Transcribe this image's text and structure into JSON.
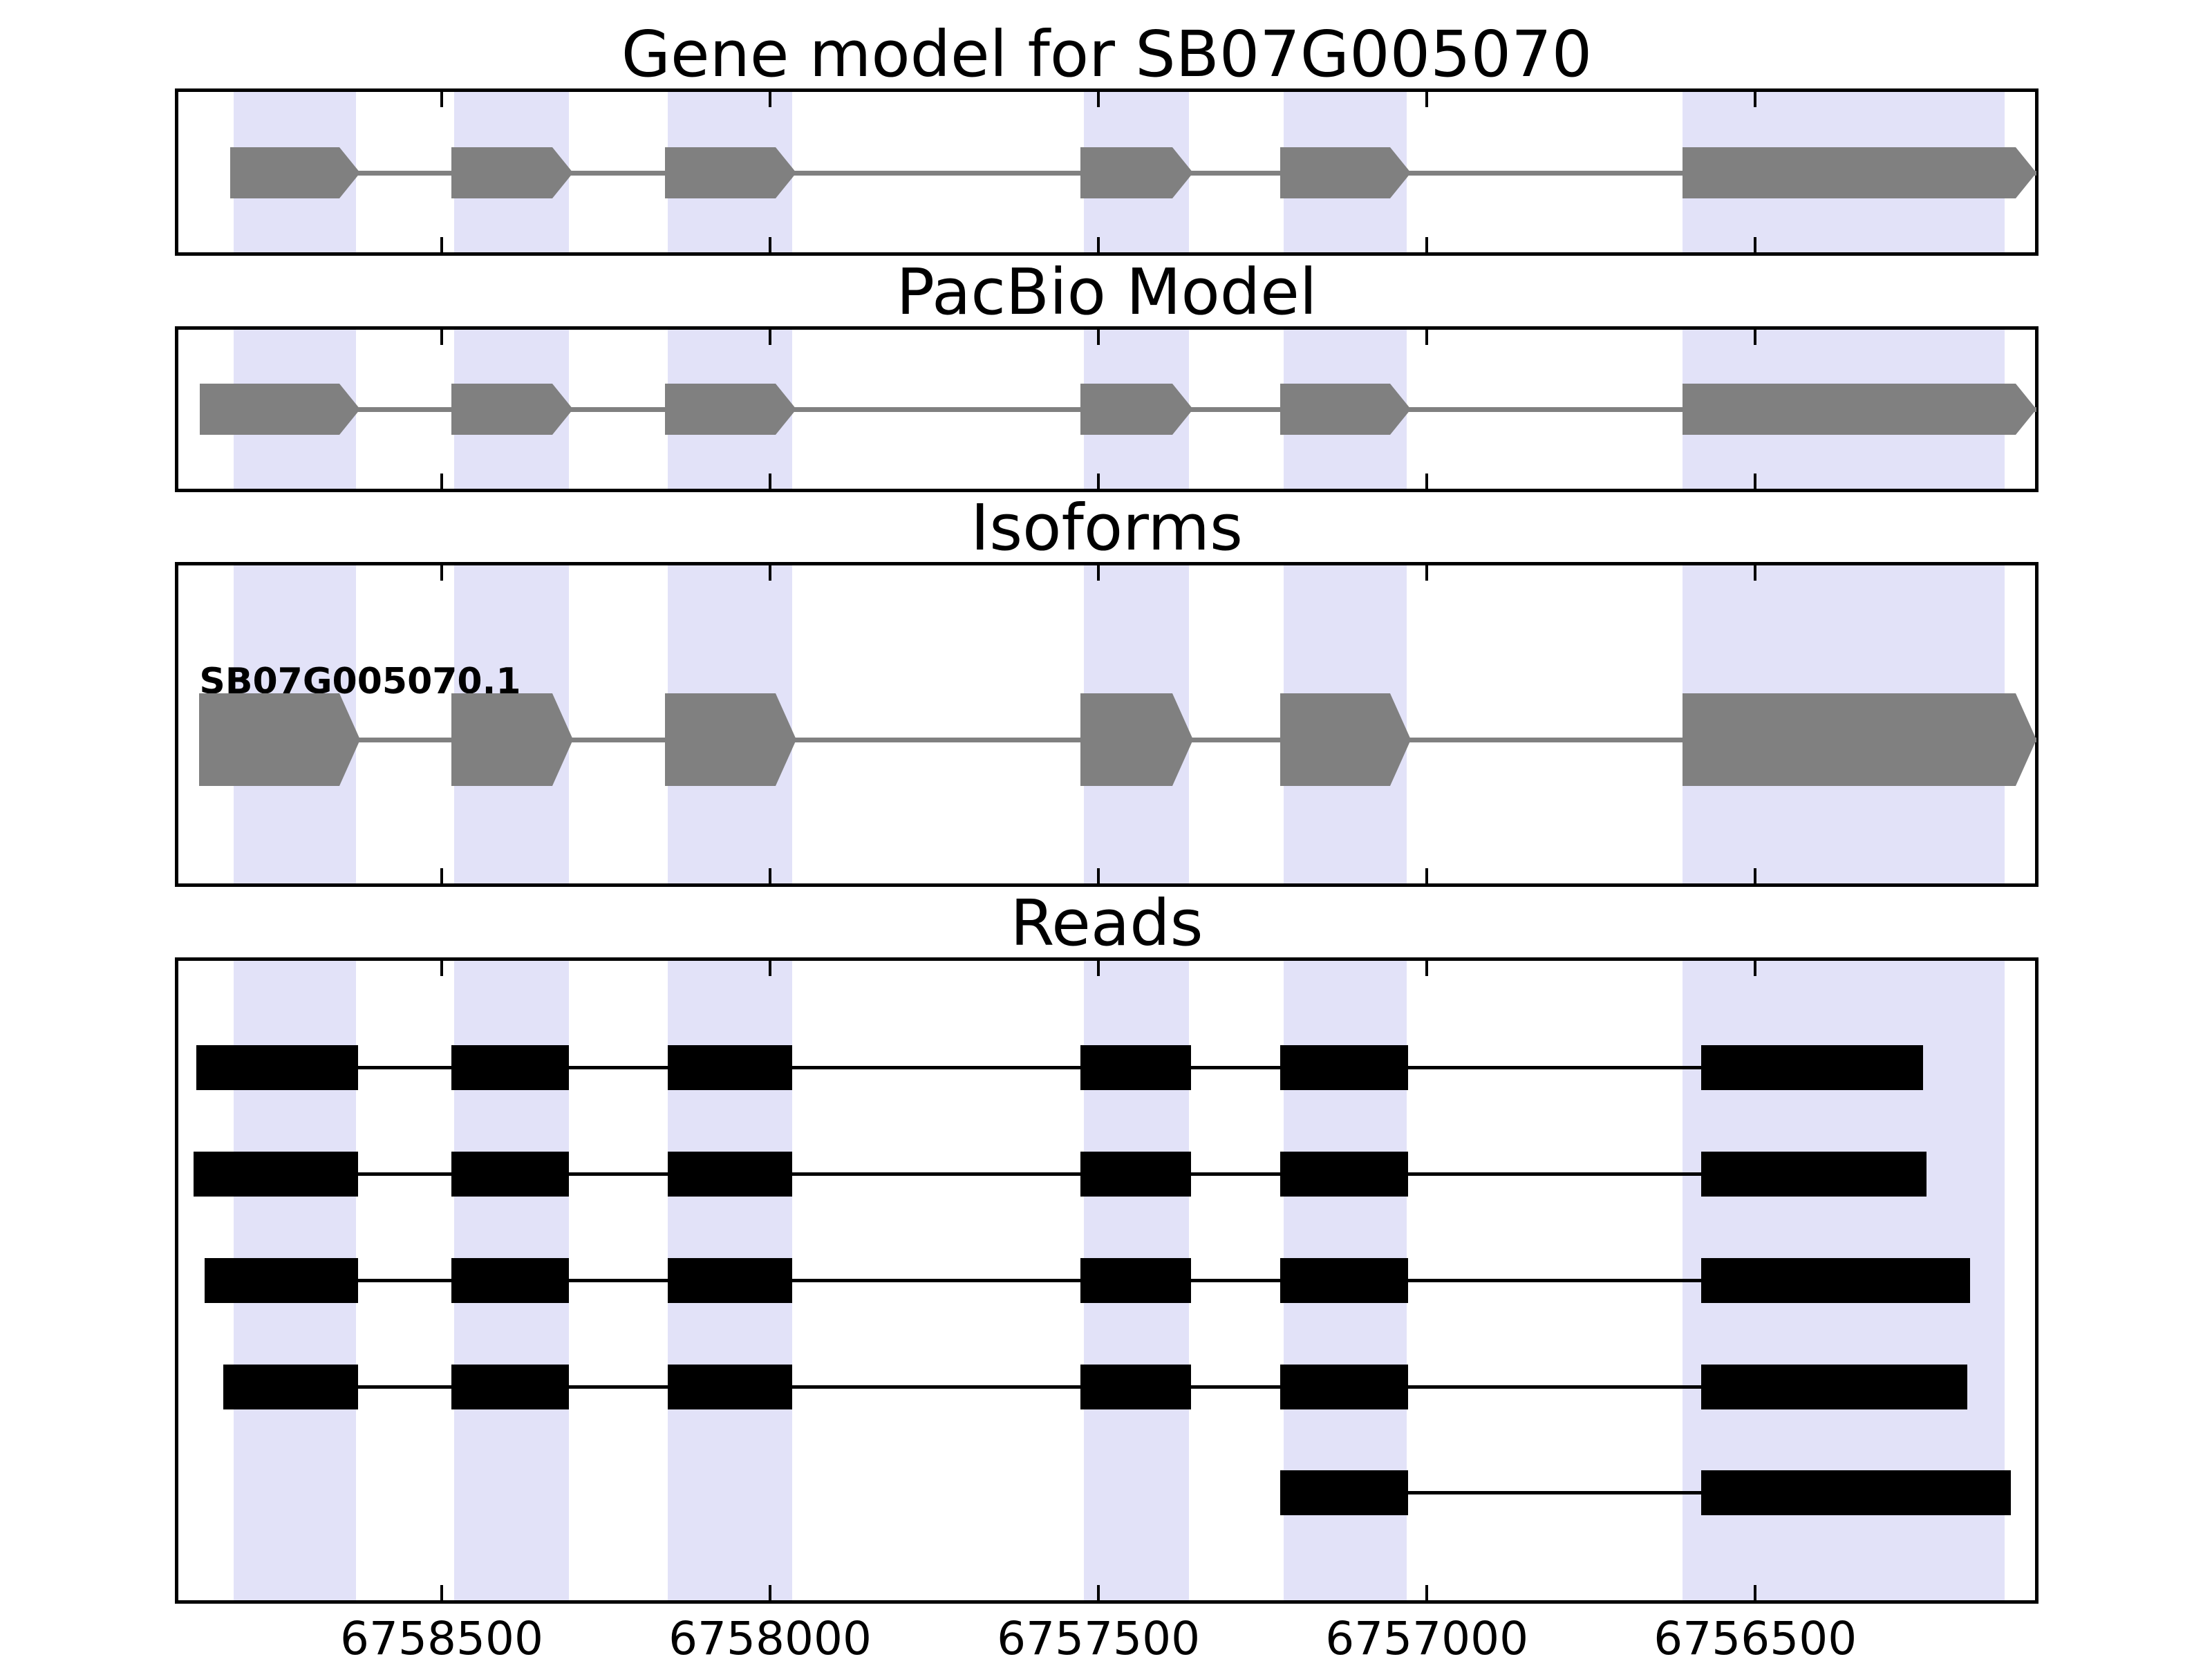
{
  "chart_data": {
    "type": "genome-browser",
    "description": "Gene structure plot with four stacked tracks sharing one genomic x-axis",
    "axis": {
      "left_bp": 6758901,
      "right_bp": 6756074,
      "direction": "coordinates decrease to the right",
      "ticks_bp": [
        6758500,
        6758000,
        6757500,
        6757000,
        6756500
      ],
      "tick_labels": [
        "6758500",
        "6758000",
        "6757500",
        "6757000",
        "6756500"
      ]
    },
    "highlight_regions_bp": [
      [
        6758631,
        6758817
      ],
      [
        6758306,
        6758481
      ],
      [
        6757966,
        6758156
      ],
      [
        6757362,
        6757522
      ],
      [
        6757031,
        6757218
      ],
      [
        6756120,
        6756611
      ]
    ],
    "tracks": [
      {
        "id": "gene_model",
        "title": "Gene model for SB07G005070",
        "kind": "transcript",
        "strand_arrow": "right",
        "exons": [
          [
            6758631,
            6758822
          ],
          [
            6758306,
            6758485
          ],
          [
            6757966,
            6758160
          ],
          [
            6757362,
            6757527
          ],
          [
            6757031,
            6757223
          ],
          [
            6756078,
            6756611
          ]
        ]
      },
      {
        "id": "pacbio",
        "title": "PacBio Model",
        "kind": "transcript",
        "strand_arrow": "right",
        "exons": [
          [
            6758631,
            6758868
          ],
          [
            6758306,
            6758485
          ],
          [
            6757966,
            6758160
          ],
          [
            6757362,
            6757527
          ],
          [
            6757031,
            6757223
          ],
          [
            6756078,
            6756611
          ]
        ]
      },
      {
        "id": "isoforms",
        "title": "Isoforms",
        "kind": "isoform-list",
        "isoforms": [
          {
            "name": "SB07G005070.1",
            "strand_arrow": "right",
            "exons": [
              [
                6758631,
                6758869
              ],
              [
                6758306,
                6758485
              ],
              [
                6757966,
                6758160
              ],
              [
                6757362,
                6757527
              ],
              [
                6757031,
                6757223
              ],
              [
                6756078,
                6756611
              ]
            ]
          }
        ]
      },
      {
        "id": "reads",
        "title": "Reads",
        "kind": "reads",
        "reads": [
          [
            [
              6758627,
              6758874
            ],
            [
              6758306,
              6758485
            ],
            [
              6757966,
              6758156
            ],
            [
              6757359,
              6757528
            ],
            [
              6757029,
              6757223
            ],
            [
              6756244,
              6756582
            ]
          ],
          [
            [
              6758627,
              6758878
            ],
            [
              6758306,
              6758485
            ],
            [
              6757966,
              6758156
            ],
            [
              6757359,
              6757528
            ],
            [
              6757029,
              6757223
            ],
            [
              6756239,
              6756582
            ]
          ],
          [
            [
              6758627,
              6758861
            ],
            [
              6758306,
              6758485
            ],
            [
              6757966,
              6758156
            ],
            [
              6757359,
              6757528
            ],
            [
              6757029,
              6757223
            ],
            [
              6756173,
              6756582
            ]
          ],
          [
            [
              6758627,
              6758833
            ],
            [
              6758306,
              6758485
            ],
            [
              6757966,
              6758156
            ],
            [
              6757359,
              6757528
            ],
            [
              6757029,
              6757223
            ],
            [
              6756177,
              6756582
            ]
          ],
          [
            [
              6757029,
              6757223
            ],
            [
              6756111,
              6756582
            ]
          ]
        ]
      }
    ],
    "colors": {
      "highlight_band": "#e2e2f8",
      "transcript_gray": "#808080",
      "reads_black": "#000000",
      "panel_border": "#000000",
      "background": "#ffffff"
    },
    "legend": "none",
    "grid": "off"
  }
}
